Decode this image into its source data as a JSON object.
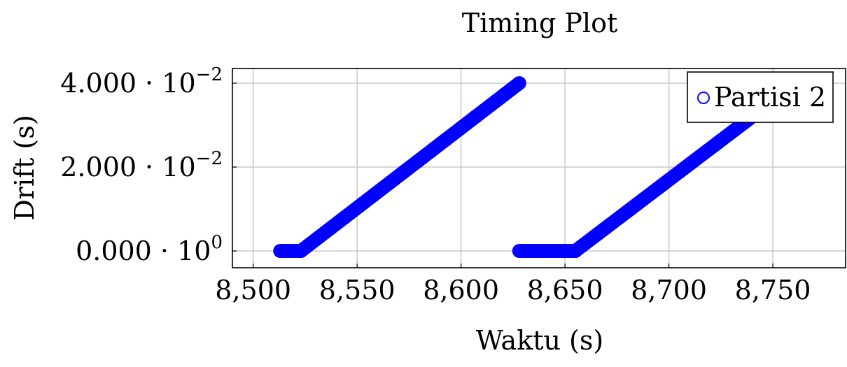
{
  "chart_data": {
    "type": "scatter",
    "title": "Timing Plot",
    "xlabel": "Waktu (s)",
    "ylabel": "Drift (s)",
    "xlim": [
      8490,
      8785
    ],
    "ylim": [
      -0.004,
      0.0435
    ],
    "x_ticks": [
      8500,
      8550,
      8600,
      8650,
      8700,
      8750
    ],
    "x_tick_labels": [
      "8,500",
      "8,550",
      "8,600",
      "8,650",
      "8,700",
      "8,750"
    ],
    "y_ticks": [
      {
        "value": 0,
        "mantissa": "0.000",
        "base": "10",
        "exponent": "0"
      },
      {
        "value": 0.02,
        "mantissa": "2.000",
        "base": "10",
        "exponent": "−2"
      },
      {
        "value": 0.04,
        "mantissa": "4.000",
        "base": "10",
        "exponent": "−2"
      }
    ],
    "grid": true,
    "legend_position": "top-right",
    "series": [
      {
        "name": "Partisi 2",
        "color": "#0000ff",
        "marker": "circle",
        "segments": [
          {
            "flat_from": 8513,
            "flat_to": 8523,
            "rise_to_x": 8628,
            "rise_to_y": 0.04
          },
          {
            "flat_from": 8628,
            "flat_to": 8655,
            "rise_to_x": 8740,
            "rise_to_y": 0.032
          }
        ]
      }
    ]
  }
}
